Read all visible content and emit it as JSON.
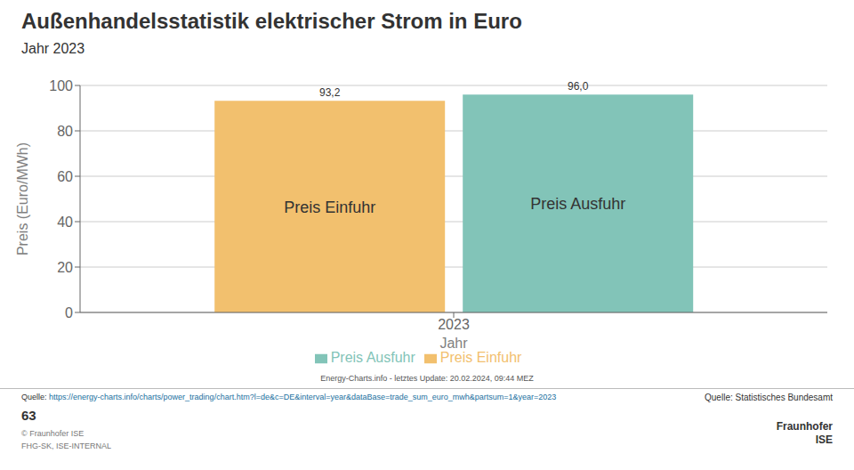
{
  "chart_data": {
    "type": "bar",
    "title": "Außenhandelsstatistik elektrischer Strom in Euro",
    "subtitle": "Jahr 2023",
    "xlabel": "Jahr",
    "ylabel": "Preis (Euro/MWh)",
    "categories": [
      "2023"
    ],
    "series": [
      {
        "name": "Preis Einfuhr",
        "color": "#F2C06E",
        "values": [
          93.2
        ],
        "value_labels": [
          "93,2"
        ]
      },
      {
        "name": "Preis Ausfuhr",
        "color": "#82C4B8",
        "values": [
          96.0
        ],
        "value_labels": [
          "96,0"
        ]
      }
    ],
    "ylim": [
      0,
      100
    ],
    "yticks": [
      0,
      20,
      40,
      60,
      80,
      100
    ],
    "grid": true,
    "legend": "bottom",
    "data_labels": true,
    "annotations": [
      "Energy-Charts.info - letztes Update: 20.02.2024, 09:44 MEZ",
      "Quelle: ",
      "https://energy-charts.info/charts/power_trading/chart.htm?l=de&c=DE&interval=year&dataBase=trade_sum_euro_mwh&partsum=1&year=2023",
      "Quelle: Statistisches Bundesamt",
      "63",
      "© Fraunhofer ISE",
      "FHG-SK, ISE-INTERNAL",
      "Fraunhofer",
      "ISE"
    ]
  }
}
